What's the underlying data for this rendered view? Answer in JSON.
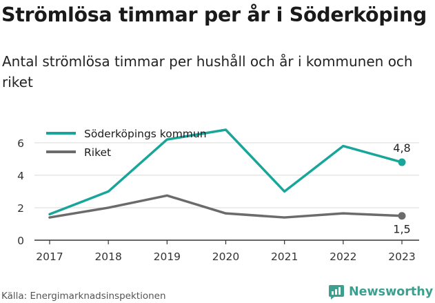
{
  "title": "Strömlösa timmar per år i Söderköping",
  "subtitle": "Antal strömlösa timmar per hushåll och år i kommunen och riket",
  "source": "Källa: Energimarknadsinspektionen",
  "brand": "Newsworthy",
  "colors": {
    "kommun": "#1aa59a",
    "riket": "#6b6b6b",
    "grid": "#d9d9d9",
    "axis": "#333333",
    "brand": "#3f9f8f"
  },
  "icons": {
    "logo": "newsworthy-logo-icon"
  },
  "chart_data": {
    "type": "line",
    "title": "Strömlösa timmar per år i Söderköping",
    "subtitle": "Antal strömlösa timmar per hushåll och år i kommunen och riket",
    "categories": [
      "2017",
      "2018",
      "2019",
      "2020",
      "2021",
      "2022",
      "2023"
    ],
    "series": [
      {
        "name": "Söderköpings kommun",
        "values": [
          1.6,
          3.0,
          6.2,
          6.8,
          3.0,
          5.8,
          4.8
        ],
        "end_label": "4,8"
      },
      {
        "name": "Riket",
        "values": [
          1.4,
          2.0,
          2.75,
          1.65,
          1.4,
          1.65,
          1.5
        ],
        "end_label": "1,5"
      }
    ],
    "y_ticks": [
      "0",
      "2",
      "4",
      "6"
    ],
    "ylim": [
      0,
      6.8
    ],
    "grid": "horizontal",
    "legend_position": "top-left"
  }
}
